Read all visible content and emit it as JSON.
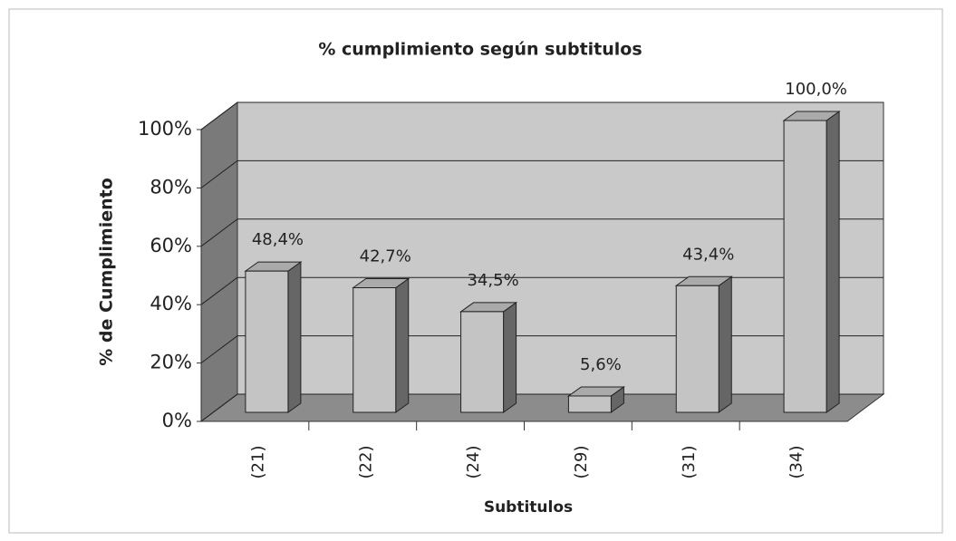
{
  "chart_data": {
    "type": "bar3d",
    "title": "% cumplimiento según subtitulos",
    "x_label": "Subtitulos",
    "y_label": "% de Cumplimiento",
    "categories": [
      "(21)",
      "(22)",
      "(24)",
      "(29)",
      "(31)",
      "(34)"
    ],
    "values": [
      48.4,
      42.7,
      34.5,
      5.6,
      43.4,
      100
    ],
    "value_labels": [
      "48,4%",
      "42,7%",
      "34,5%",
      "5,6%",
      "43,4%",
      "100,0%"
    ],
    "color": "#c4c4c4",
    "ylim": [
      0,
      100
    ],
    "yticks": [
      {
        "value": 0,
        "label": "0%"
      },
      {
        "value": 20,
        "label": "20%"
      },
      {
        "value": 40,
        "label": "40%"
      },
      {
        "value": 60,
        "label": "60%"
      },
      {
        "value": 80,
        "label": "80%"
      },
      {
        "value": 100,
        "label": "100%"
      }
    ],
    "grid": true
  }
}
